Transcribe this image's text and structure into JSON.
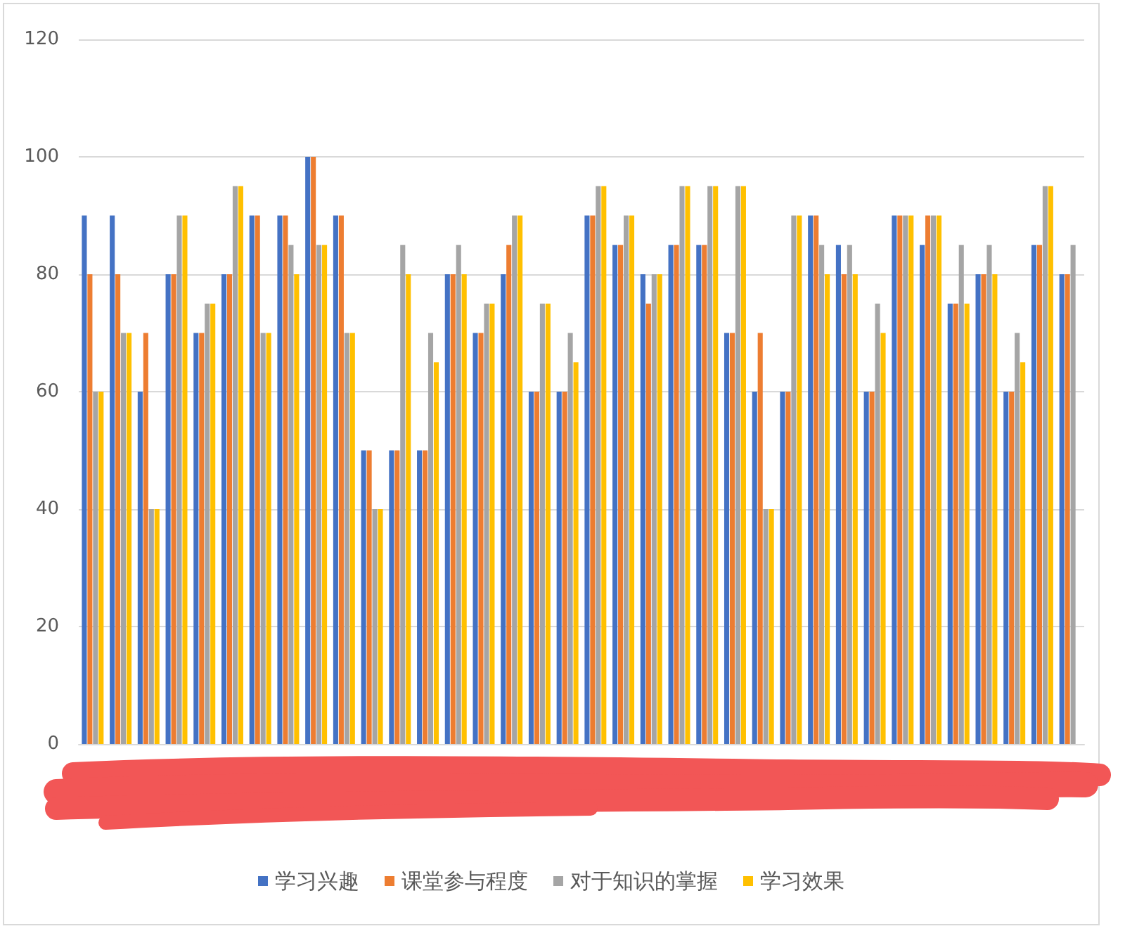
{
  "chart_data": {
    "type": "bar",
    "categories": [
      null,
      null,
      null,
      null,
      null,
      null,
      null,
      null,
      null,
      null,
      null,
      null,
      null,
      null,
      null,
      null,
      null,
      null,
      null,
      null,
      null,
      null,
      null,
      null,
      null,
      null,
      null,
      null,
      null,
      null,
      null,
      null,
      null,
      null,
      null,
      null
    ],
    "series": [
      {
        "name": "学习兴趣",
        "color": "#4472c4",
        "values": [
          90,
          90,
          60,
          80,
          70,
          80,
          90,
          90,
          100,
          90,
          50,
          50,
          50,
          80,
          70,
          80,
          60,
          60,
          90,
          85,
          80,
          85,
          85,
          70,
          60,
          60,
          90,
          85,
          60,
          90,
          85,
          75,
          80,
          60,
          85,
          80
        ]
      },
      {
        "name": "课堂参与程度",
        "color": "#ed7d31",
        "values": [
          80,
          80,
          70,
          80,
          70,
          80,
          90,
          90,
          100,
          90,
          50,
          50,
          50,
          80,
          70,
          85,
          60,
          60,
          90,
          85,
          75,
          85,
          85,
          70,
          70,
          60,
          90,
          80,
          60,
          90,
          90,
          75,
          80,
          60,
          85,
          80
        ]
      },
      {
        "name": "对于知识的掌握",
        "color": "#a5a5a5",
        "values": [
          60,
          70,
          40,
          90,
          75,
          95,
          70,
          85,
          85,
          70,
          40,
          85,
          70,
          85,
          75,
          90,
          75,
          70,
          95,
          90,
          80,
          95,
          95,
          95,
          40,
          90,
          85,
          85,
          75,
          90,
          90,
          85,
          85,
          70,
          95,
          85
        ]
      },
      {
        "name": "学习效果",
        "color": "#ffc000",
        "values": [
          60,
          70,
          40,
          90,
          75,
          95,
          70,
          80,
          85,
          70,
          40,
          80,
          65,
          80,
          75,
          90,
          75,
          65,
          95,
          90,
          80,
          95,
          95,
          95,
          40,
          90,
          80,
          80,
          70,
          90,
          90,
          75,
          80,
          65,
          95,
          null
        ]
      }
    ],
    "ylim": [
      0,
      120
    ],
    "yticks": [
      0,
      20,
      40,
      60,
      80,
      100,
      120
    ],
    "grid": "y",
    "legend": "bottom"
  }
}
